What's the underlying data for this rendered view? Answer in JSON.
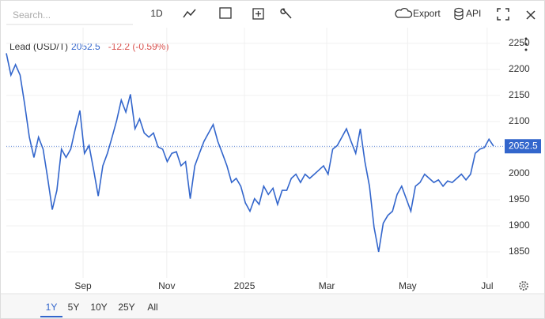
{
  "ui": {
    "search_placeholder": "Search...",
    "interval": "1D",
    "export": "Export",
    "api": "API",
    "ranges": [
      "1Y",
      "5Y",
      "10Y",
      "25Y",
      "All"
    ],
    "active_range": "1Y"
  },
  "chart_data": {
    "type": "line",
    "name": "Lead (USD/T)",
    "change": "-12.2 (-0.59%)",
    "color": "#3366cc",
    "values": [
      2231,
      2189,
      2209,
      2189,
      2133,
      2070,
      2031,
      2070,
      2047,
      1991,
      1931,
      1968,
      2047,
      2031,
      2047,
      2086,
      2121,
      2039,
      2054,
      2007,
      1957,
      2015,
      2039,
      2070,
      2102,
      2141,
      2118,
      2152,
      2086,
      2105,
      2078,
      2070,
      2078,
      2051,
      2047,
      2023,
      2039,
      2042,
      2015,
      2023,
      1952,
      2015,
      2039,
      2062,
      2078,
      2094,
      2062,
      2039,
      2015,
      1983,
      1991,
      1976,
      1944,
      1928,
      1952,
      1941,
      1976,
      1960,
      1972,
      1941,
      1968,
      1968,
      1991,
      1999,
      1983,
      1999,
      1991,
      1999,
      2007,
      2015,
      1999,
      2047,
      2054,
      2070,
      2086,
      2062,
      2039,
      2086,
      2023,
      1976,
      1897,
      1850,
      1905,
      1920,
      1928,
      1960,
      1976,
      1952,
      1928,
      1976,
      1983,
      1999,
      1991,
      1983,
      1988,
      1976,
      1986,
      1983,
      1991,
      1999,
      1988,
      1999,
      2039,
      2047,
      2050,
      2066,
      2052.5
    ],
    "xlim": [
      0,
      106
    ],
    "xticks": [
      {
        "value": 16.7,
        "label": "Sep"
      },
      {
        "value": 34.9,
        "label": "Nov"
      },
      {
        "value": 51.8,
        "label": "2025"
      },
      {
        "value": 69.7,
        "label": "Mar"
      },
      {
        "value": 87.3,
        "label": "May"
      },
      {
        "value": 104.6,
        "label": "Jul"
      }
    ],
    "ylim": [
      1800,
      2280
    ],
    "yticks": [
      1850,
      1900,
      1950,
      2000,
      2050,
      2100,
      2150,
      2200,
      2250
    ],
    "grid": true
  }
}
